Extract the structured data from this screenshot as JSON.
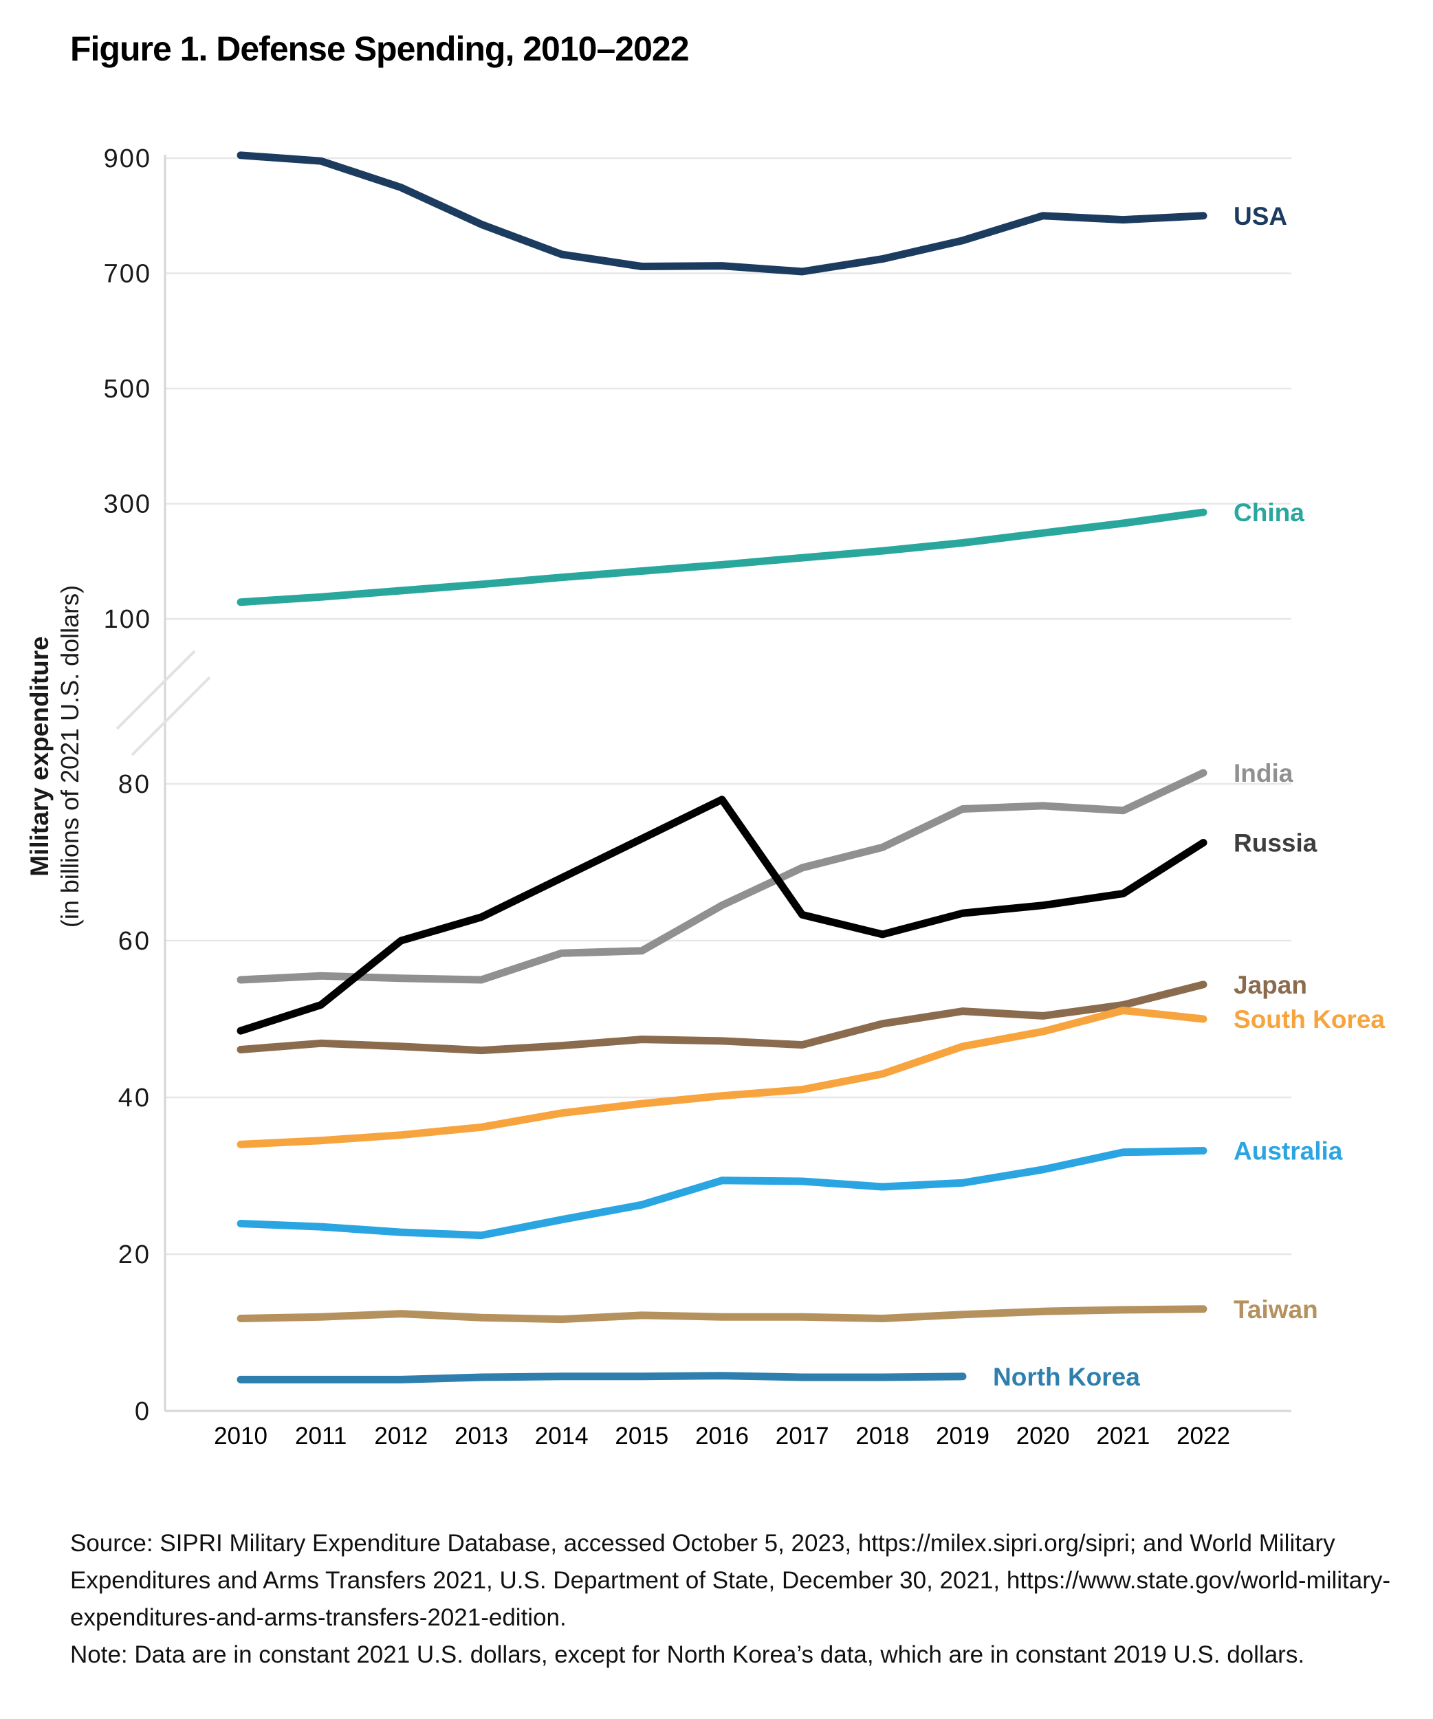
{
  "title": "Figure 1. Defense Spending, 2010–2022",
  "y_axis": {
    "title_main": "Military expenditure",
    "title_sub": "(in billions of 2021 U.S. dollars)",
    "top_panel_ticks": [
      900,
      700,
      500,
      300,
      100
    ],
    "bottom_panel_ticks": [
      80,
      60,
      40,
      20,
      0
    ],
    "has_axis_break": true
  },
  "source_note": {
    "lines": [
      "Source: SIPRI Military Expenditure Database, accessed October 5, 2023, https://milex.sipri.org/sipri; and World Military",
      "Expenditures and Arms Transfers 2021, U.S. Department of State, December 30, 2021, https://www.state.gov/world-military-",
      "expenditures-and-arms-transfers-2021-edition.",
      "Note: Data are in constant 2021 U.S. dollars, except for North Korea’s data, which are in constant 2019 U.S. dollars."
    ]
  },
  "chart_data": {
    "type": "line",
    "x": [
      2010,
      2011,
      2012,
      2013,
      2014,
      2015,
      2016,
      2017,
      2018,
      2019,
      2020,
      2021,
      2022
    ],
    "xlabel": "",
    "ylabel": "Military expenditure (in billions of 2021 U.S. dollars)",
    "grid": true,
    "legend_position": "right-of-line-ends",
    "axis_break_between": [
      100,
      80
    ],
    "top_panel_range": [
      100,
      935
    ],
    "bottom_panel_range": [
      0,
      88
    ],
    "series": [
      {
        "name": "USA",
        "panel": "top",
        "color": "#1b3b5f",
        "values": [
          905,
          895,
          849,
          785,
          733,
          712,
          713,
          703,
          725,
          757,
          800,
          793,
          800
        ]
      },
      {
        "name": "China",
        "panel": "top",
        "color": "#2aa79d",
        "values": [
          129,
          138,
          149,
          160,
          172,
          183,
          194,
          206,
          218,
          232,
          249,
          266,
          285
        ]
      },
      {
        "name": "India",
        "panel": "bottom",
        "color": "#909090",
        "values": [
          55,
          55.5,
          55.2,
          55,
          58.4,
          58.7,
          64.5,
          69.3,
          71.9,
          76.8,
          77.2,
          76.6,
          81.4
        ]
      },
      {
        "name": "Russia",
        "panel": "bottom",
        "color": "#000000",
        "label_color": "#3d3d3d",
        "values": [
          48.5,
          51.8,
          60,
          63,
          68,
          73,
          78,
          63.3,
          60.8,
          63.5,
          64.5,
          66,
          72.5
        ]
      },
      {
        "name": "Japan",
        "panel": "bottom",
        "color": "#8b6b4d",
        "values": [
          46.1,
          46.9,
          46.5,
          46,
          46.6,
          47.4,
          47.2,
          46.7,
          49.4,
          51,
          50.4,
          51.8,
          54.4
        ]
      },
      {
        "name": "South Korea",
        "panel": "bottom",
        "color": "#f7a43f",
        "values": [
          34,
          34.5,
          35.2,
          36.2,
          38,
          39.2,
          40.2,
          41,
          43,
          46.5,
          48.4,
          51.1,
          50
        ]
      },
      {
        "name": "Australia",
        "panel": "bottom",
        "color": "#2aa5e1",
        "values": [
          23.9,
          23.5,
          22.8,
          22.4,
          24.4,
          26.3,
          29.4,
          29.3,
          28.6,
          29.1,
          30.8,
          33,
          33.2
        ]
      },
      {
        "name": "Taiwan",
        "panel": "bottom",
        "color": "#b5915e",
        "values": [
          11.8,
          12,
          12.4,
          11.9,
          11.7,
          12.2,
          12,
          12,
          11.8,
          12.3,
          12.7,
          12.9,
          13
        ]
      },
      {
        "name": "North Korea",
        "panel": "bottom",
        "color": "#2e7fae",
        "values": [
          4,
          4,
          4,
          4.3,
          4.4,
          4.4,
          4.5,
          4.3,
          4.3,
          4.4
        ]
      }
    ]
  }
}
